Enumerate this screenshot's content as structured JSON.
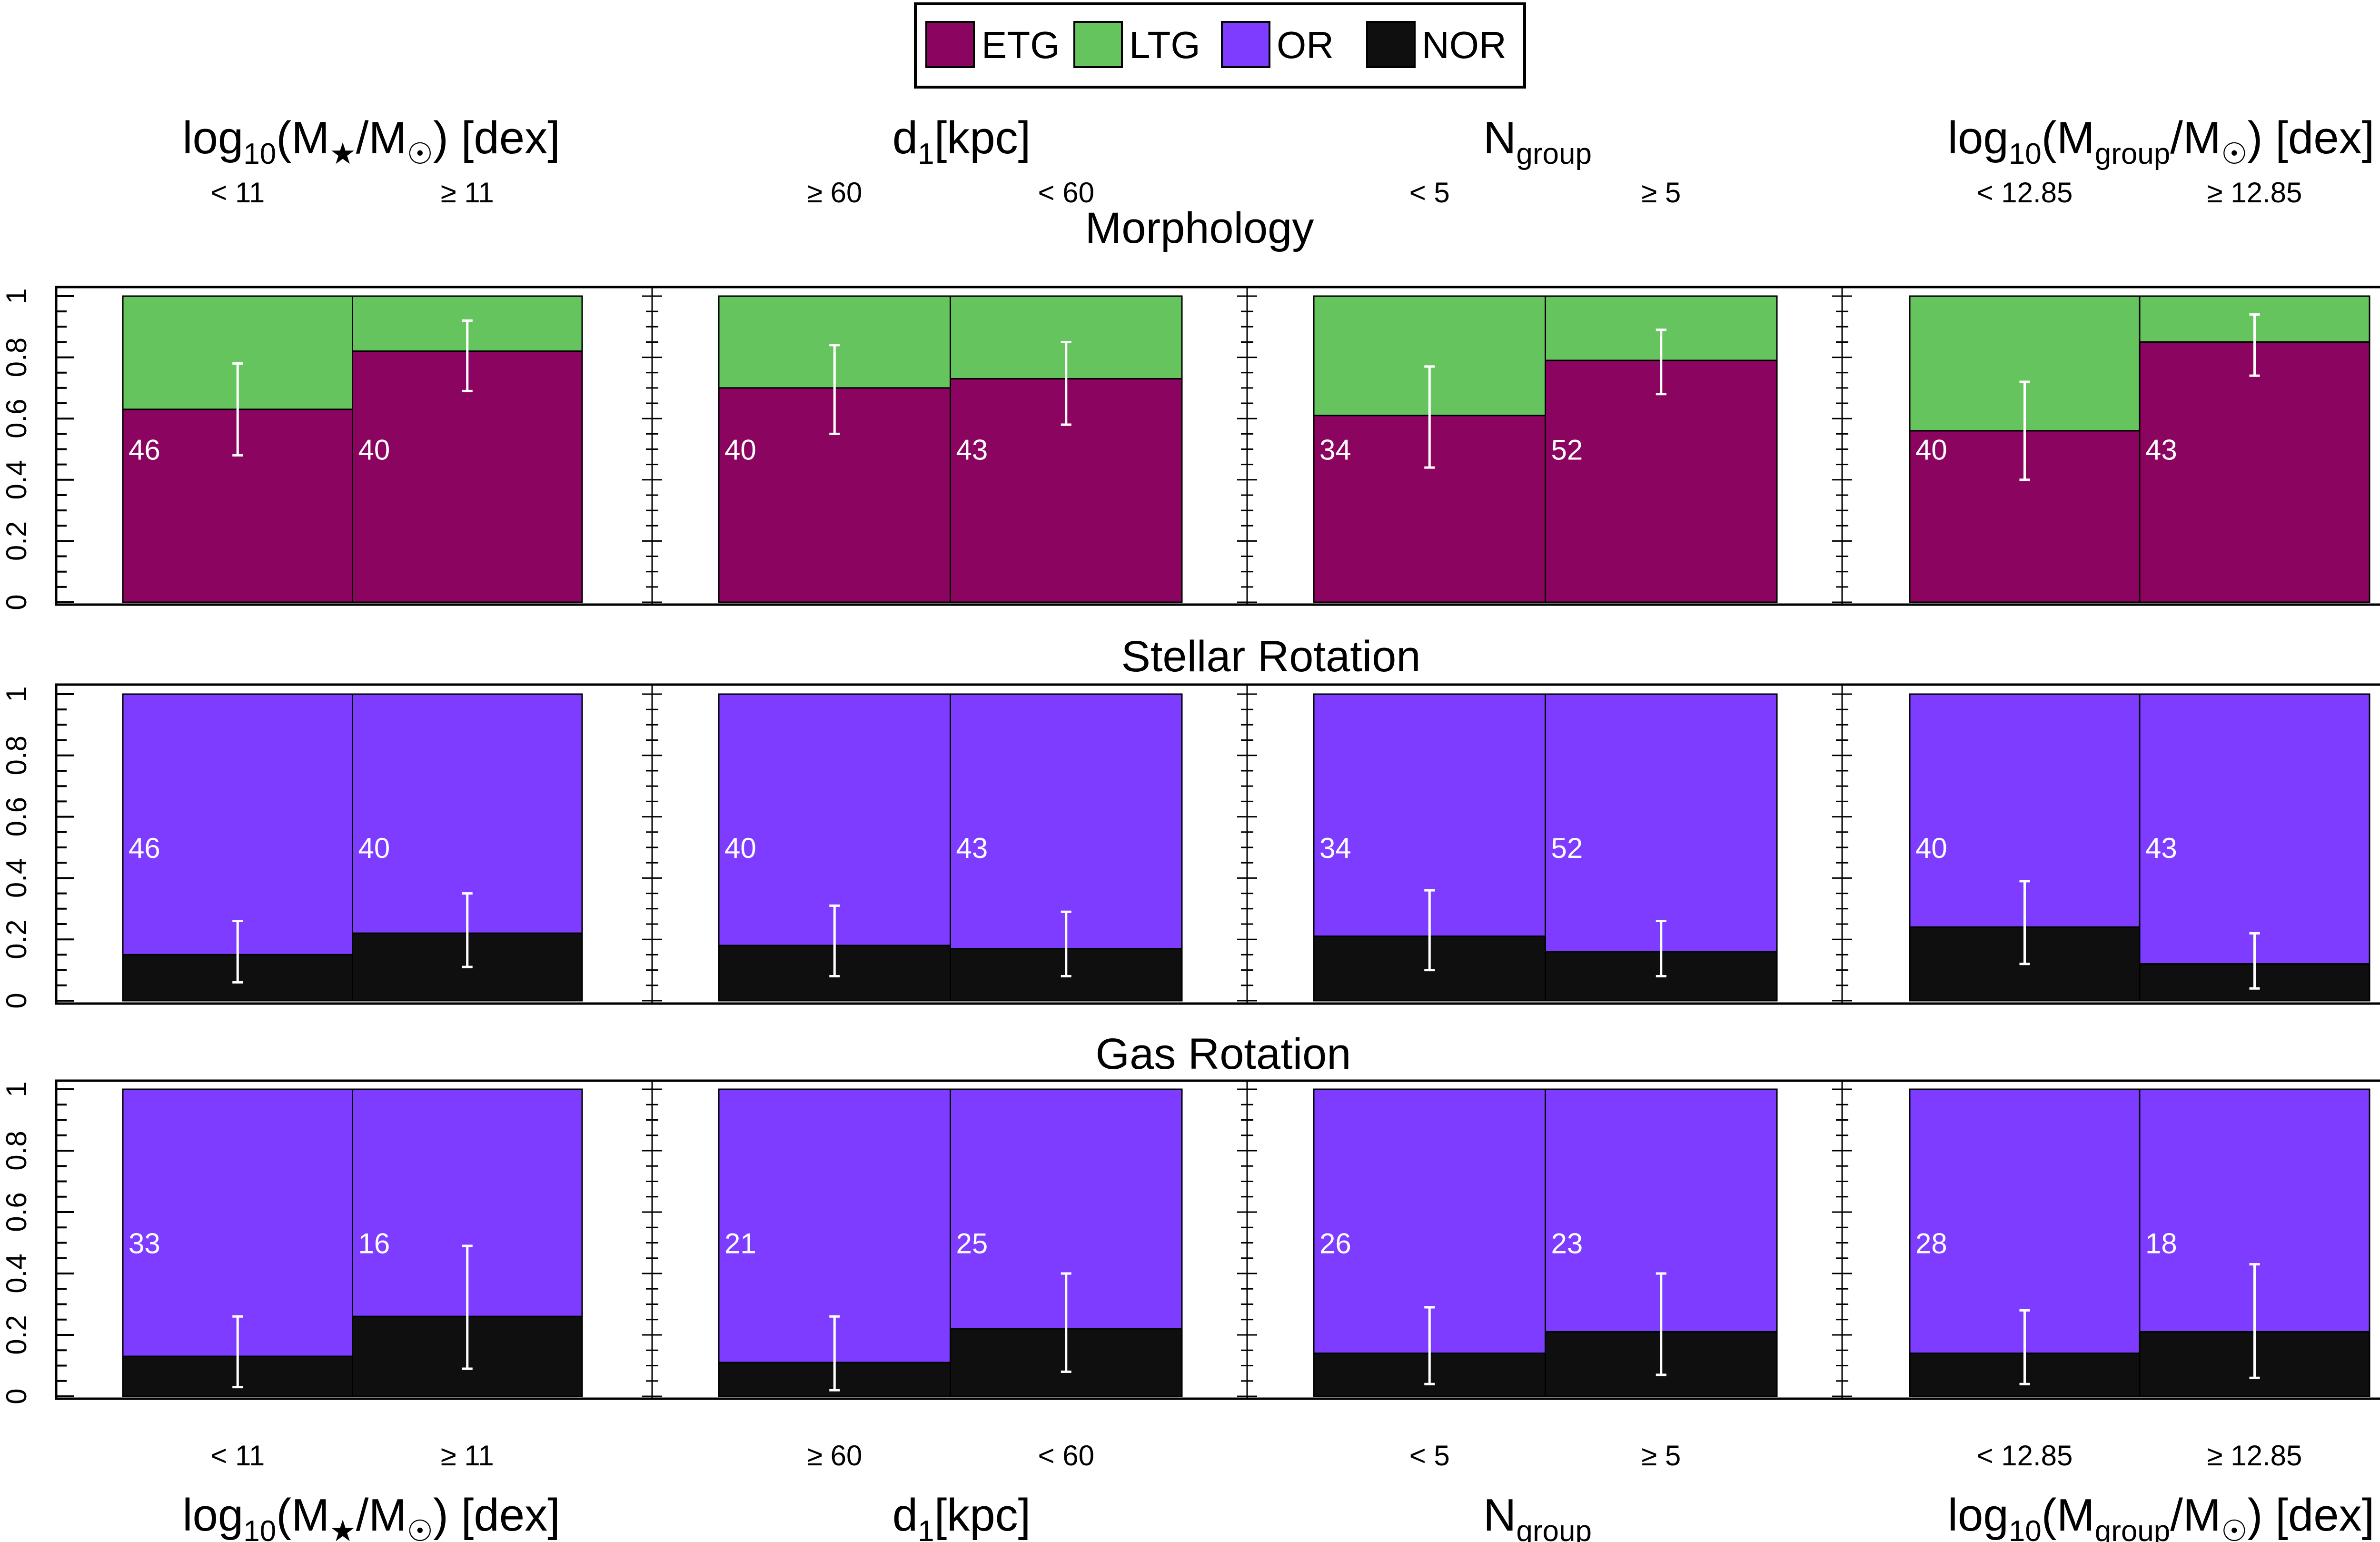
{
  "chart_data": {
    "type": "bar",
    "stacked": true,
    "ylim": [
      0,
      1
    ],
    "yticks": [
      "0",
      "0.2",
      "0.4",
      "0.6",
      "0.8",
      "1"
    ],
    "legend": {
      "placement": "top-center",
      "entries": [
        {
          "name": "ETG",
          "color": "#8B0560"
        },
        {
          "name": "LTG",
          "color": "#66C45E"
        },
        {
          "name": "OR",
          "color": "#7D3CFF"
        },
        {
          "name": "NOR",
          "color": "#0F0F0F"
        }
      ]
    },
    "column_groups": [
      {
        "label_base": "log",
        "label_sub": "10",
        "label_rest": "(M",
        "label_sub2": "★",
        "label_tail": "/M",
        "label_sub3": "☉",
        "label_end": ") [dex]",
        "categories": [
          "< 11",
          "≥ 11"
        ]
      },
      {
        "label_base": "d",
        "label_sub": "1",
        "label_rest": "[kpc]",
        "label_sub2": "",
        "label_tail": "",
        "label_sub3": "",
        "label_end": "",
        "categories": [
          "≥ 60",
          "< 60"
        ]
      },
      {
        "label_base": "N",
        "label_sub": "group",
        "label_rest": "",
        "label_sub2": "",
        "label_tail": "",
        "label_sub3": "",
        "label_end": "",
        "categories": [
          "< 5",
          "≥ 5"
        ]
      },
      {
        "label_base": "log",
        "label_sub": "10",
        "label_rest": "(M",
        "label_sub2": "group",
        "label_tail": "/M",
        "label_sub3": "☉",
        "label_end": ") [dex]",
        "categories": [
          "< 12.85",
          "≥ 12.85"
        ]
      }
    ],
    "rows": [
      {
        "title": "Morphology",
        "bottom_series": "ETG",
        "top_series": "LTG",
        "panels": [
          {
            "bars": [
              {
                "value": 0.63,
                "err": [
                  0.48,
                  0.78
                ],
                "n": "46"
              },
              {
                "value": 0.82,
                "err": [
                  0.69,
                  0.92
                ],
                "n": "40"
              }
            ]
          },
          {
            "bars": [
              {
                "value": 0.7,
                "err": [
                  0.55,
                  0.84
                ],
                "n": "40"
              },
              {
                "value": 0.73,
                "err": [
                  0.58,
                  0.85
                ],
                "n": "43"
              }
            ]
          },
          {
            "bars": [
              {
                "value": 0.61,
                "err": [
                  0.44,
                  0.77
                ],
                "n": "34"
              },
              {
                "value": 0.79,
                "err": [
                  0.68,
                  0.89
                ],
                "n": "52"
              }
            ]
          },
          {
            "bars": [
              {
                "value": 0.56,
                "err": [
                  0.4,
                  0.72
                ],
                "n": "40"
              },
              {
                "value": 0.85,
                "err": [
                  0.74,
                  0.94
                ],
                "n": "43"
              }
            ]
          }
        ]
      },
      {
        "title": "Stellar Rotation",
        "bottom_series": "NOR",
        "top_series": "OR",
        "panels": [
          {
            "bars": [
              {
                "value": 0.15,
                "err": [
                  0.06,
                  0.26
                ],
                "n": "46"
              },
              {
                "value": 0.22,
                "err": [
                  0.11,
                  0.35
                ],
                "n": "40"
              }
            ]
          },
          {
            "bars": [
              {
                "value": 0.18,
                "err": [
                  0.08,
                  0.31
                ],
                "n": "40"
              },
              {
                "value": 0.17,
                "err": [
                  0.08,
                  0.29
                ],
                "n": "43"
              }
            ]
          },
          {
            "bars": [
              {
                "value": 0.21,
                "err": [
                  0.1,
                  0.36
                ],
                "n": "34"
              },
              {
                "value": 0.16,
                "err": [
                  0.08,
                  0.26
                ],
                "n": "52"
              }
            ]
          },
          {
            "bars": [
              {
                "value": 0.24,
                "err": [
                  0.12,
                  0.39
                ],
                "n": "40"
              },
              {
                "value": 0.12,
                "err": [
                  0.04,
                  0.22
                ],
                "n": "43"
              }
            ]
          }
        ]
      },
      {
        "title": "Gas Rotation",
        "bottom_series": "NOR",
        "top_series": "OR",
        "panels": [
          {
            "bars": [
              {
                "value": 0.13,
                "err": [
                  0.03,
                  0.26
                ],
                "n": "33"
              },
              {
                "value": 0.26,
                "err": [
                  0.09,
                  0.49
                ],
                "n": "16"
              }
            ]
          },
          {
            "bars": [
              {
                "value": 0.11,
                "err": [
                  0.02,
                  0.26
                ],
                "n": "21"
              },
              {
                "value": 0.22,
                "err": [
                  0.08,
                  0.4
                ],
                "n": "25"
              }
            ]
          },
          {
            "bars": [
              {
                "value": 0.14,
                "err": [
                  0.04,
                  0.29
                ],
                "n": "26"
              },
              {
                "value": 0.21,
                "err": [
                  0.07,
                  0.4
                ],
                "n": "23"
              }
            ]
          },
          {
            "bars": [
              {
                "value": 0.14,
                "err": [
                  0.04,
                  0.28
                ],
                "n": "28"
              },
              {
                "value": 0.21,
                "err": [
                  0.06,
                  0.43
                ],
                "n": "18"
              }
            ]
          }
        ]
      }
    ]
  }
}
